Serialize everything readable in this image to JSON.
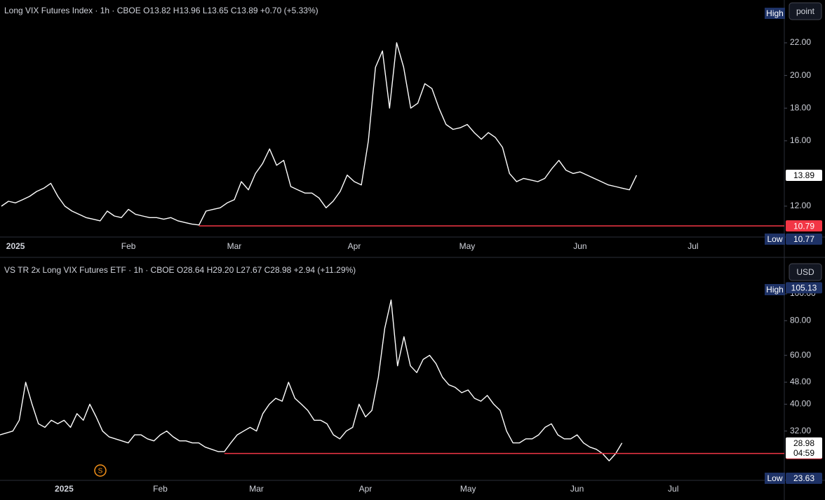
{
  "chart_data": [
    {
      "type": "line",
      "title": "Long VIX Futures Index · 1h · CBOE  O13.82  H13.96  L13.65  C13.89  +0.70 (+5.33%)",
      "unit_button": "point",
      "high_label": "High",
      "low_label": "Low",
      "low": 10.77,
      "categories": [
        null,
        null,
        "2025",
        null,
        null,
        null,
        null,
        null,
        null,
        null,
        null,
        null,
        null,
        null,
        null,
        null,
        null,
        null,
        "Feb",
        null,
        null,
        null,
        null,
        null,
        null,
        null,
        null,
        null,
        null,
        null,
        null,
        null,
        null,
        "Mar",
        null,
        null,
        null,
        null,
        null,
        null,
        null,
        null,
        null,
        null,
        null,
        null,
        null,
        null,
        null,
        null,
        "Apr",
        null,
        null,
        null,
        null,
        null,
        null,
        null,
        null,
        null,
        null,
        null,
        null,
        null,
        null,
        null,
        "May",
        null,
        null,
        null,
        null,
        null,
        null,
        null,
        null,
        null,
        null,
        null,
        null,
        null,
        null,
        null,
        "Jun",
        null,
        null,
        null,
        null,
        null,
        null,
        null,
        null,
        null,
        null,
        null,
        null,
        null,
        null,
        null,
        "Jul"
      ],
      "series": [
        {
          "name": "Long VIX Futures Index",
          "color": "#ffffff",
          "values": [
            12.0,
            12.3,
            12.2,
            12.4,
            12.6,
            12.9,
            13.1,
            13.4,
            12.6,
            12.0,
            11.7,
            11.5,
            11.3,
            11.2,
            11.1,
            11.7,
            11.4,
            11.3,
            11.8,
            11.5,
            11.4,
            11.3,
            11.3,
            11.2,
            11.3,
            11.1,
            11.0,
            10.9,
            10.85,
            11.7,
            11.8,
            11.9,
            12.2,
            12.4,
            13.5,
            13.0,
            14.0,
            14.6,
            15.5,
            14.5,
            14.8,
            13.2,
            13.0,
            12.8,
            12.8,
            12.5,
            11.9,
            12.3,
            12.9,
            13.9,
            13.5,
            13.3,
            16.0,
            20.5,
            21.5,
            18.0,
            22.0,
            20.5,
            18.0,
            18.3,
            19.5,
            19.2,
            18.0,
            17.0,
            16.7,
            16.8,
            17.0,
            16.5,
            16.1,
            16.5,
            16.2,
            15.6,
            14.0,
            13.5,
            13.7,
            13.6,
            13.5,
            13.7,
            14.3,
            14.8,
            14.2,
            14.0,
            14.1,
            13.9,
            13.7,
            13.5,
            13.3,
            13.2,
            13.1,
            13.0,
            13.89,
            null,
            null,
            null,
            null,
            null,
            null,
            null,
            null
          ]
        }
      ],
      "ylim": [
        10.11,
        24.62
      ],
      "yticks": [
        {
          "value": 12,
          "label": "12.00"
        },
        {
          "value": 16,
          "label": "16.00"
        },
        {
          "value": 18,
          "label": "18.00"
        },
        {
          "value": 20,
          "label": "20.00"
        },
        {
          "value": 22,
          "label": "22.00"
        }
      ],
      "hline": {
        "value": 10.79,
        "color": "#f23645"
      },
      "log_scale": false
    },
    {
      "type": "line",
      "title": "VS TR 2x Long VIX Futures ETF · 1h · CBOE  O28.64  H29.20  L27.67  C28.98  +2.94 (+11.29%)",
      "unit_button": "USD",
      "high_label": "High",
      "high": 105.13,
      "low_label": "Low",
      "low": 23.63,
      "countdown": "04:59",
      "event_marker": "S",
      "categories": [
        null,
        null,
        null,
        null,
        null,
        null,
        null,
        null,
        null,
        null,
        "2025",
        null,
        null,
        null,
        null,
        null,
        null,
        null,
        null,
        null,
        null,
        null,
        null,
        null,
        null,
        "Feb",
        null,
        null,
        null,
        null,
        null,
        null,
        null,
        null,
        null,
        null,
        null,
        null,
        null,
        null,
        "Mar",
        null,
        null,
        null,
        null,
        null,
        null,
        null,
        null,
        null,
        null,
        null,
        null,
        null,
        null,
        null,
        null,
        "Apr",
        null,
        null,
        null,
        null,
        null,
        null,
        null,
        null,
        null,
        null,
        null,
        null,
        null,
        null,
        null,
        "May",
        null,
        null,
        null,
        null,
        null,
        null,
        null,
        null,
        null,
        null,
        null,
        null,
        null,
        null,
        null,
        null,
        "Jun",
        null,
        null,
        null,
        null,
        null,
        null,
        null,
        null,
        null,
        null,
        null,
        null,
        null,
        null,
        "Jul"
      ],
      "series": [
        {
          "name": "VS TR 2x Long VIX Futures ETF",
          "color": "#ffffff",
          "values": [
            31,
            31.5,
            32,
            35,
            48,
            40,
            34,
            33,
            35,
            34,
            35,
            33,
            37,
            35,
            40,
            36,
            32,
            30.5,
            30,
            29.5,
            29,
            31,
            31,
            30,
            29.5,
            31,
            32,
            30.5,
            29.5,
            29.5,
            29,
            29,
            28,
            27.5,
            27,
            27,
            29,
            31,
            32,
            33,
            32,
            37,
            40,
            42,
            41,
            48,
            42,
            40,
            38,
            35,
            35,
            34,
            31,
            30,
            32,
            33,
            40,
            36,
            38,
            50,
            75,
            95,
            55,
            70,
            55,
            52,
            58,
            60,
            56,
            50,
            47,
            46,
            44,
            45,
            42,
            41,
            43,
            40,
            38,
            32,
            29,
            29,
            30,
            30,
            31,
            33,
            34,
            31,
            30,
            30,
            31,
            29,
            28,
            27.5,
            26.5,
            25,
            26.5,
            28.98,
            null,
            null,
            null,
            null,
            null,
            null,
            null,
            null
          ]
        }
      ],
      "ylim": [
        21.5,
        133
      ],
      "yticks": [
        {
          "value": 32,
          "label": "32.00"
        },
        {
          "value": 40,
          "label": "40.00"
        },
        {
          "value": 48,
          "label": "48.00"
        },
        {
          "value": 60,
          "label": "60.00"
        },
        {
          "value": 80,
          "label": "80.00"
        },
        {
          "value": 100,
          "label": "100.00"
        }
      ],
      "hline": {
        "value": 26.58,
        "color": "#f23645"
      },
      "log_scale": true
    }
  ]
}
